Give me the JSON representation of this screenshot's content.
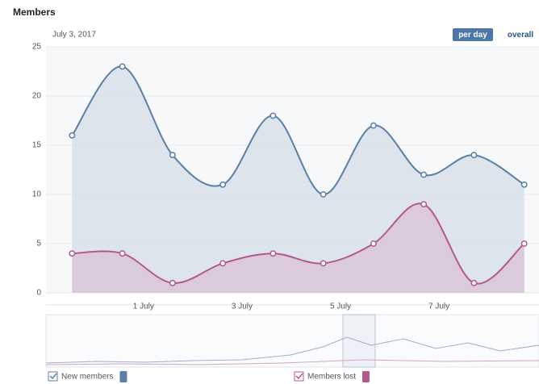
{
  "chart_data": {
    "type": "area",
    "title": "Members",
    "date_label": "July 3, 2017",
    "buttons": [
      "per day",
      "overall"
    ],
    "x": [
      -0.45,
      0.57,
      1.59,
      2.61,
      3.63,
      4.65,
      5.67,
      6.69,
      7.71,
      8.73
    ],
    "xlim": [
      -0.98,
      9.03
    ],
    "xticks": [
      {
        "value": 1,
        "label": "1 July"
      },
      {
        "value": 3,
        "label": "3 July"
      },
      {
        "value": 5,
        "label": "5 July"
      },
      {
        "value": 7,
        "label": "7 July"
      }
    ],
    "ylim": [
      0,
      25
    ],
    "yticks": [
      0,
      5,
      10,
      15,
      20,
      25
    ],
    "grid": true,
    "series": [
      {
        "name": "New members",
        "color": "#5b7fa6",
        "fill": "#d6dfe8",
        "values": [
          16,
          23,
          14,
          11,
          18,
          10,
          17,
          12,
          14,
          11
        ]
      },
      {
        "name": "Members lost",
        "color": "#b4588f",
        "fill": "#d9c3d7",
        "values": [
          4,
          4,
          1,
          3,
          4,
          3,
          5,
          9,
          1,
          5
        ]
      }
    ]
  }
}
